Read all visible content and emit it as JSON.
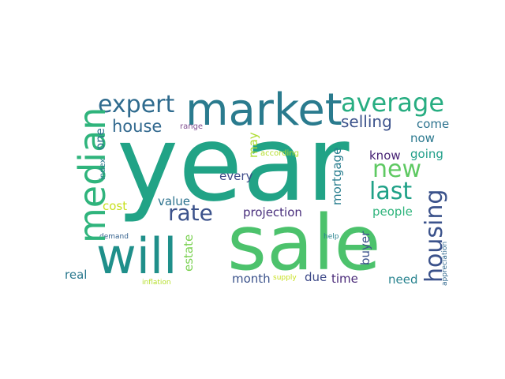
{
  "word_cloud": {
    "words": [
      {
        "text": "year",
        "color": "#21a386"
      },
      {
        "text": "sale",
        "color": "#4cc26c"
      },
      {
        "text": "will",
        "color": "#1f8f8a"
      },
      {
        "text": "market",
        "color": "#2a7b8e"
      },
      {
        "text": "median",
        "color": "#2fb47c"
      },
      {
        "text": "average",
        "color": "#27ad81"
      },
      {
        "text": "expert",
        "color": "#2f6b8e"
      },
      {
        "text": "housing",
        "color": "#3b528b"
      },
      {
        "text": "new",
        "color": "#5ec962"
      },
      {
        "text": "last",
        "color": "#1fa187"
      },
      {
        "text": "rate",
        "color": "#3b528b"
      },
      {
        "text": "house",
        "color": "#31688e"
      },
      {
        "text": "selling",
        "color": "#3b528b"
      },
      {
        "text": "come",
        "color": "#2c728e"
      },
      {
        "text": "projection",
        "color": "#472d7b"
      },
      {
        "text": "value",
        "color": "#2c728e"
      },
      {
        "text": "cost",
        "color": "#c8e020"
      },
      {
        "text": "every",
        "color": "#3e4a89"
      },
      {
        "text": "mortgage",
        "color": "#287d8e"
      },
      {
        "text": "going",
        "color": "#1f9e89"
      },
      {
        "text": "now",
        "color": "#2a788e"
      },
      {
        "text": "know",
        "color": "#482475"
      },
      {
        "text": "people",
        "color": "#2fb47c"
      },
      {
        "text": "buyer",
        "color": "#3b528b"
      },
      {
        "text": "month",
        "color": "#3b528b"
      },
      {
        "text": "due",
        "color": "#3e4a89"
      },
      {
        "text": "time",
        "color": "#482878"
      },
      {
        "text": "need",
        "color": "#26828e"
      },
      {
        "text": "real",
        "color": "#2a788e"
      },
      {
        "text": "estate",
        "color": "#7ad151"
      },
      {
        "text": "may",
        "color": "#addc30"
      },
      {
        "text": "one",
        "color": "#2c728e"
      },
      {
        "text": "range",
        "color": "#7e4e90"
      },
      {
        "text": "according",
        "color": "#b5de2b"
      },
      {
        "text": "index",
        "color": "#2a788e"
      },
      {
        "text": "demand",
        "color": "#34618d"
      },
      {
        "text": "inflation",
        "color": "#b5de2b"
      },
      {
        "text": "supply",
        "color": "#c8e020"
      },
      {
        "text": "help",
        "color": "#26828e"
      },
      {
        "text": "appreciation",
        "color": "#31688e"
      }
    ]
  }
}
